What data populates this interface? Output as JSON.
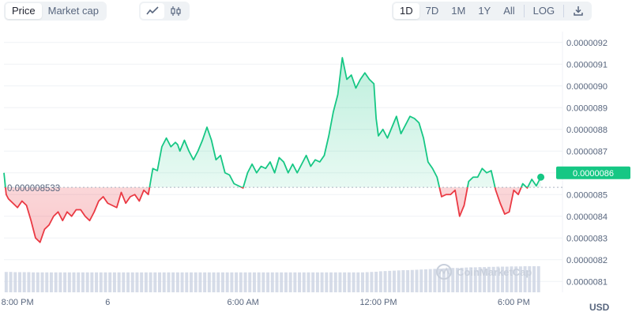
{
  "tabs": [
    {
      "label": "Price",
      "active": true
    },
    {
      "label": "Market cap",
      "active": false
    }
  ],
  "chart_style_icons": [
    "line-chart-icon",
    "candlestick-icon"
  ],
  "ranges": [
    {
      "label": "1D",
      "active": true
    },
    {
      "label": "7D",
      "active": false
    },
    {
      "label": "1M",
      "active": false
    },
    {
      "label": "1Y",
      "active": false
    },
    {
      "label": "All",
      "active": false
    }
  ],
  "log_label": "LOG",
  "download_icon": "download-icon",
  "currency": "USD",
  "watermark": "CoinMarketCap",
  "colors": {
    "up": "#16c784",
    "down": "#ea3943",
    "badge": "#16c784",
    "volume": "#cfd6e4"
  },
  "chart_data": {
    "type": "area",
    "reference_value": 8.533e-06,
    "reference_label": "0.000008533",
    "current_price": 8.6e-06,
    "current_label": "0.0000086",
    "ylim": [
      8.05e-06,
      9.25e-06
    ],
    "y_ticks": [
      {
        "value": 9.2e-06,
        "label": "0.0000092"
      },
      {
        "value": 9.1e-06,
        "label": "0.0000091"
      },
      {
        "value": 9e-06,
        "label": "0.0000090"
      },
      {
        "value": 8.9e-06,
        "label": "0.0000089"
      },
      {
        "value": 8.8e-06,
        "label": "0.0000088"
      },
      {
        "value": 8.7e-06,
        "label": "0.0000087"
      },
      {
        "value": 8.6e-06,
        "label": "0.0000086"
      },
      {
        "value": 8.5e-06,
        "label": "0.0000085"
      },
      {
        "value": 8.4e-06,
        "label": "0.0000084"
      },
      {
        "value": 8.3e-06,
        "label": "0.0000083"
      },
      {
        "value": 8.2e-06,
        "label": "0.0000082"
      },
      {
        "value": 8.1e-06,
        "label": "0.0000081"
      }
    ],
    "xlim": [
      -4.6,
      19.6
    ],
    "x_ticks": [
      {
        "value": -4,
        "label": "8:00 PM"
      },
      {
        "value": 0,
        "label": "6"
      },
      {
        "value": 6,
        "label": "6:00 AM"
      },
      {
        "value": 12,
        "label": "12:00 PM"
      },
      {
        "value": 18,
        "label": "6:00 PM"
      }
    ],
    "x_unit": "hours from midnight",
    "series": [
      {
        "x": [
          -4.6,
          -4.5,
          -4.4,
          -4.2,
          -4.0,
          -3.8,
          -3.6,
          -3.4,
          -3.2,
          -3.0,
          -2.8,
          -2.6,
          -2.4,
          -2.2,
          -2.0,
          -1.8,
          -1.6,
          -1.4,
          -1.2,
          -1.0,
          -0.8,
          -0.6,
          -0.4,
          -0.2,
          0.0,
          0.2,
          0.4,
          0.6,
          0.8,
          1.0,
          1.2,
          1.4,
          1.6,
          1.8,
          2.0,
          2.2,
          2.4,
          2.6,
          2.8,
          3.0,
          3.1,
          3.2,
          3.4,
          3.6,
          3.8,
          4.0,
          4.2,
          4.4,
          4.6,
          4.8,
          5.0,
          5.2,
          5.4,
          5.6,
          5.8,
          6.0,
          6.2,
          6.4,
          6.6,
          6.8,
          7.0,
          7.2,
          7.4,
          7.6,
          7.8,
          8.0,
          8.2,
          8.4,
          8.6,
          8.8,
          9.0,
          9.2,
          9.4,
          9.6,
          9.8,
          10.0,
          10.2,
          10.4,
          10.6,
          10.8,
          11.0,
          11.2,
          11.4,
          11.6,
          11.8,
          11.9,
          12.0,
          12.2,
          12.4,
          12.6,
          12.8,
          13.0,
          13.2,
          13.4,
          13.6,
          13.8,
          14.0,
          14.2,
          14.4,
          14.6,
          14.8,
          15.0,
          15.2,
          15.4,
          15.6,
          15.8,
          16.0,
          16.2,
          16.4,
          16.6,
          16.8,
          17.0,
          17.2,
          17.4,
          17.6,
          17.8,
          18.0,
          18.2,
          18.4,
          18.6,
          18.8,
          19.0,
          19.1,
          19.2
        ],
        "y": [
          8.6e-06,
          8.5e-06,
          8.48e-06,
          8.46e-06,
          8.44e-06,
          8.47e-06,
          8.45e-06,
          8.38e-06,
          8.3e-06,
          8.28e-06,
          8.34e-06,
          8.36e-06,
          8.4e-06,
          8.42e-06,
          8.38e-06,
          8.42e-06,
          8.4e-06,
          8.43e-06,
          8.43e-06,
          8.4e-06,
          8.38e-06,
          8.42e-06,
          8.47e-06,
          8.49e-06,
          8.46e-06,
          8.45e-06,
          8.44e-06,
          8.51e-06,
          8.46e-06,
          8.49e-06,
          8.5e-06,
          8.47e-06,
          8.52e-06,
          8.5e-06,
          8.62e-06,
          8.61e-06,
          8.72e-06,
          8.76e-06,
          8.72e-06,
          8.74e-06,
          8.73e-06,
          8.7e-06,
          8.75e-06,
          8.7e-06,
          8.66e-06,
          8.7e-06,
          8.75e-06,
          8.81e-06,
          8.75e-06,
          8.66e-06,
          8.68e-06,
          8.6e-06,
          8.59e-06,
          8.55e-06,
          8.54e-06,
          8.53e-06,
          8.6e-06,
          8.64e-06,
          8.6e-06,
          8.63e-06,
          8.62e-06,
          8.65e-06,
          8.6e-06,
          8.67e-06,
          8.65e-06,
          8.6e-06,
          8.64e-06,
          8.6e-06,
          8.64e-06,
          8.68e-06,
          8.63e-06,
          8.66e-06,
          8.65e-06,
          8.68e-06,
          8.77e-06,
          8.88e-06,
          8.96e-06,
          9.13e-06,
          9.03e-06,
          9.05e-06,
          8.99e-06,
          9.03e-06,
          9.06e-06,
          9.03e-06,
          9.01e-06,
          8.85e-06,
          8.77e-06,
          8.8e-06,
          8.76e-06,
          8.81e-06,
          8.86e-06,
          8.78e-06,
          8.82e-06,
          8.86e-06,
          8.85e-06,
          8.83e-06,
          8.76e-06,
          8.65e-06,
          8.62e-06,
          8.58e-06,
          8.49e-06,
          8.5e-06,
          8.5e-06,
          8.52e-06,
          8.4e-06,
          8.45e-06,
          8.56e-06,
          8.58e-06,
          8.58e-06,
          8.62e-06,
          8.6e-06,
          8.61e-06,
          8.52e-06,
          8.46e-06,
          8.41e-06,
          8.42e-06,
          8.52e-06,
          8.5e-06,
          8.55e-06,
          8.53e-06,
          8.57e-06,
          8.54e-06,
          8.56e-06,
          8.58e-06
        ]
      }
    ],
    "volume": {
      "x": [
        -4.5,
        -4.3,
        -4.1,
        -3.9,
        -3.7,
        -3.5,
        -3.3,
        -3.1,
        -2.9,
        -2.7,
        -2.5,
        -2.3,
        -2.1,
        -1.9,
        -1.7,
        -1.5,
        -1.3,
        -1.1,
        -0.9,
        -0.7,
        -0.5,
        -0.3,
        -0.1,
        0.1,
        0.3,
        0.5,
        0.7,
        0.9,
        1.1,
        1.3,
        1.5,
        1.7,
        1.9,
        2.1,
        2.3,
        2.5,
        2.7,
        2.9,
        3.1,
        3.3,
        3.5,
        3.7,
        3.9,
        4.1,
        4.3,
        4.5,
        4.7,
        4.9,
        5.1,
        5.3,
        5.5,
        5.7,
        5.9,
        6.1,
        6.3,
        6.5,
        6.7,
        6.9,
        7.1,
        7.3,
        7.5,
        7.7,
        7.9,
        8.1,
        8.3,
        8.5,
        8.7,
        8.9,
        9.1,
        9.3,
        9.5,
        9.7,
        9.9,
        10.1,
        10.3,
        10.5,
        10.7,
        10.9,
        11.1,
        11.3,
        11.5,
        11.7,
        11.9,
        12.1,
        12.3,
        12.5,
        12.7,
        12.9,
        13.1,
        13.3,
        13.5,
        13.7,
        13.9,
        14.1,
        14.3,
        14.5,
        14.7,
        14.9,
        15.1,
        15.3,
        15.5,
        15.7,
        15.9,
        16.1,
        16.3,
        16.5,
        16.7,
        16.9,
        17.1,
        17.3,
        17.5,
        17.7,
        17.9,
        18.1,
        18.3,
        18.5,
        18.7,
        18.9,
        19.1
      ],
      "values": [
        0.92,
        0.92,
        0.91,
        0.91,
        0.91,
        0.91,
        0.9,
        0.9,
        0.9,
        0.9,
        0.9,
        0.9,
        0.9,
        0.9,
        0.9,
        0.9,
        0.9,
        0.9,
        0.9,
        0.9,
        0.9,
        0.9,
        0.9,
        0.9,
        0.9,
        0.9,
        0.9,
        0.9,
        0.9,
        0.9,
        0.9,
        0.9,
        0.9,
        0.9,
        0.9,
        0.9,
        0.9,
        0.9,
        0.9,
        0.9,
        0.9,
        0.9,
        0.9,
        0.9,
        0.9,
        0.9,
        0.9,
        0.9,
        0.9,
        0.9,
        0.9,
        0.9,
        0.9,
        0.9,
        0.9,
        0.9,
        0.9,
        0.9,
        0.9,
        0.9,
        0.9,
        0.9,
        0.9,
        0.9,
        0.9,
        0.9,
        0.9,
        0.9,
        0.9,
        0.9,
        0.9,
        0.9,
        0.9,
        0.9,
        0.9,
        0.9,
        0.9,
        0.9,
        0.9,
        0.9,
        0.91,
        0.92,
        0.93,
        0.95,
        0.96,
        0.97,
        0.98,
        0.99,
        1.0,
        1.0,
        1.01,
        1.02,
        1.03,
        1.04,
        1.05,
        1.06,
        1.07,
        1.08,
        1.09,
        1.1,
        1.1,
        1.11,
        1.12,
        1.13,
        1.13,
        1.14,
        1.14,
        1.15,
        1.15,
        1.16,
        1.16,
        1.16,
        1.17,
        1.17,
        1.17,
        1.18,
        1.18,
        1.18,
        1.18
      ]
    },
    "grid": true
  }
}
